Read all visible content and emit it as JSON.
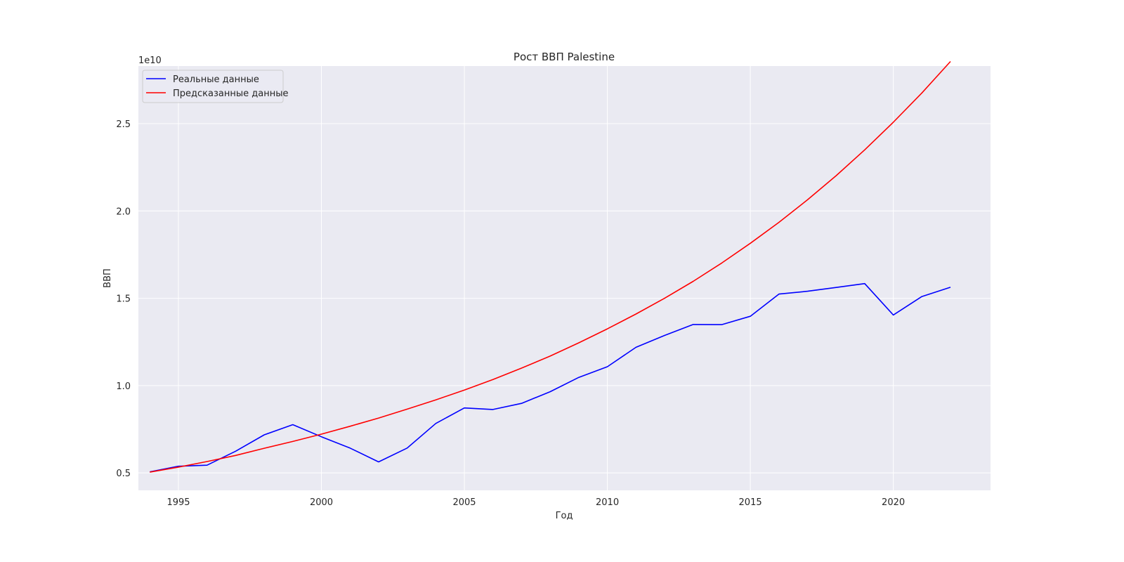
{
  "chart_data": {
    "type": "line",
    "title": "Рост ВВП Palestine",
    "xlabel": "Год",
    "ylabel": "ВВП",
    "y_offset_label": "1e10",
    "xlim": [
      1993.6,
      2023.4
    ],
    "ylim": [
      4000000000.0,
      28300000000.0
    ],
    "xticks": [
      1995,
      2000,
      2005,
      2010,
      2015,
      2020
    ],
    "xtick_labels": [
      "1995",
      "2000",
      "2005",
      "2010",
      "2015",
      "2020"
    ],
    "yticks": [
      5000000000.0,
      10000000000.0,
      15000000000.0,
      20000000000.0,
      25000000000.0
    ],
    "ytick_labels": [
      "0.5",
      "1.0",
      "1.5",
      "2.0",
      "2.5"
    ],
    "grid": true,
    "legend_position": "upper-left",
    "x": [
      1994,
      1995,
      1996,
      1997,
      1998,
      1999,
      2000,
      2001,
      2002,
      2003,
      2004,
      2005,
      2006,
      2007,
      2008,
      2009,
      2010,
      2011,
      2012,
      2013,
      2014,
      2015,
      2016,
      2017,
      2018,
      2019,
      2020,
      2021,
      2022
    ],
    "series": [
      {
        "name": "Реальные данные",
        "color": "#0000ff",
        "values": [
          5060000000.0,
          5380000000.0,
          5440000000.0,
          6240000000.0,
          7180000000.0,
          7760000000.0,
          7070000000.0,
          6420000000.0,
          5630000000.0,
          6420000000.0,
          7830000000.0,
          8720000000.0,
          8630000000.0,
          8980000000.0,
          9650000000.0,
          10470000000.0,
          11080000000.0,
          12190000000.0,
          12870000000.0,
          13500000000.0,
          13490000000.0,
          13970000000.0,
          15240000000.0,
          15400000000.0,
          15620000000.0,
          15840000000.0,
          14040000000.0,
          15100000000.0,
          15630000000.0
        ]
      },
      {
        "name": "Предсказанные данные",
        "color": "#ff0000",
        "values": [
          5040000000.0,
          5330000000.0,
          5650000000.0,
          6000000000.0,
          6410000000.0,
          6800000000.0,
          7220000000.0,
          7670000000.0,
          8140000000.0,
          8650000000.0,
          9180000000.0,
          9740000000.0,
          10350000000.0,
          11000000000.0,
          11690000000.0,
          12450000000.0,
          13250000000.0,
          14100000000.0,
          15000000000.0,
          15970000000.0,
          17020000000.0,
          18150000000.0,
          19350000000.0,
          20640000000.0,
          22020000000.0,
          23500000000.0,
          25080000000.0,
          26760000000.0,
          28560000000.0
        ]
      }
    ]
  }
}
